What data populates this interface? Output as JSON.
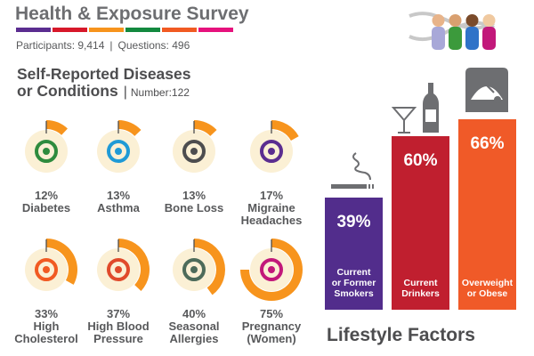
{
  "header": {
    "title": "Health & Exposure Survey",
    "color_bar": [
      "#5b2d90",
      "#d7182a",
      "#f7941d",
      "#13893f",
      "#f15a22",
      "#e6127d"
    ],
    "participants": "Participants: 9,414",
    "questions": "Questions: 496"
  },
  "section": {
    "title_line1": "Self-Reported Diseases",
    "title_line2": "or Conditions",
    "number": "Number:122"
  },
  "chart_data": [
    {
      "type": "pie",
      "title": "Self-Reported Diseases or Conditions",
      "unit": "%",
      "colors": {
        "arc": "#f7941d",
        "inner": "#fbf0d5"
      },
      "items": [
        {
          "value": 12,
          "pct": "12%",
          "label": [
            "Diabetes"
          ],
          "icon": "glucose-meter-icon",
          "icon_color": "#2e8b3e"
        },
        {
          "value": 13,
          "pct": "13%",
          "label": [
            "Asthma"
          ],
          "icon": "lungs-icon",
          "icon_color": "#1f9ad6"
        },
        {
          "value": 13,
          "pct": "13%",
          "label": [
            "Bone Loss"
          ],
          "icon": "bone-icon",
          "icon_color": "#4d4d4f"
        },
        {
          "value": 17,
          "pct": "17%",
          "label": [
            "Migraine",
            "Headaches"
          ],
          "icon": "head-migraine-icon",
          "icon_color": "#5b2d90"
        },
        {
          "value": 33,
          "pct": "33%",
          "label": [
            "High",
            "Cholesterol"
          ],
          "icon": "artery-cholesterol-icon",
          "icon_color": "#f15a22"
        },
        {
          "value": 37,
          "pct": "37%",
          "label": [
            "High Blood",
            "Pressure"
          ],
          "icon": "heart-pulse-icon",
          "icon_color": "#e04a2b"
        },
        {
          "value": 40,
          "pct": "40%",
          "label": [
            "Seasonal",
            "Allergies"
          ],
          "icon": "sneeze-icon",
          "icon_color": "#4d6b5a"
        },
        {
          "value": 75,
          "pct": "75%",
          "label": [
            "Pregnancy",
            "(Women)"
          ],
          "icon": "fetus-icon",
          "icon_color": "#c2187a"
        }
      ]
    },
    {
      "type": "bar",
      "title": "Lifestyle Factors",
      "unit": "%",
      "categories": [
        "Current or Former Smokers",
        "Current Drinkers",
        "Overweight or Obese"
      ],
      "values": [
        39,
        60,
        66
      ],
      "pct_labels": [
        "39%",
        "60%",
        "66%"
      ],
      "label_lines": [
        [
          "Current",
          "or Former",
          "Smokers"
        ],
        [
          "Current",
          "Drinkers"
        ],
        [
          "Overweight",
          "or Obese"
        ]
      ],
      "colors": [
        "#522d8c",
        "#c01f2f",
        "#f05a28"
      ],
      "icons": [
        "cigarette-icon",
        "martini-bottle-icon",
        "scale-icon"
      ]
    }
  ]
}
